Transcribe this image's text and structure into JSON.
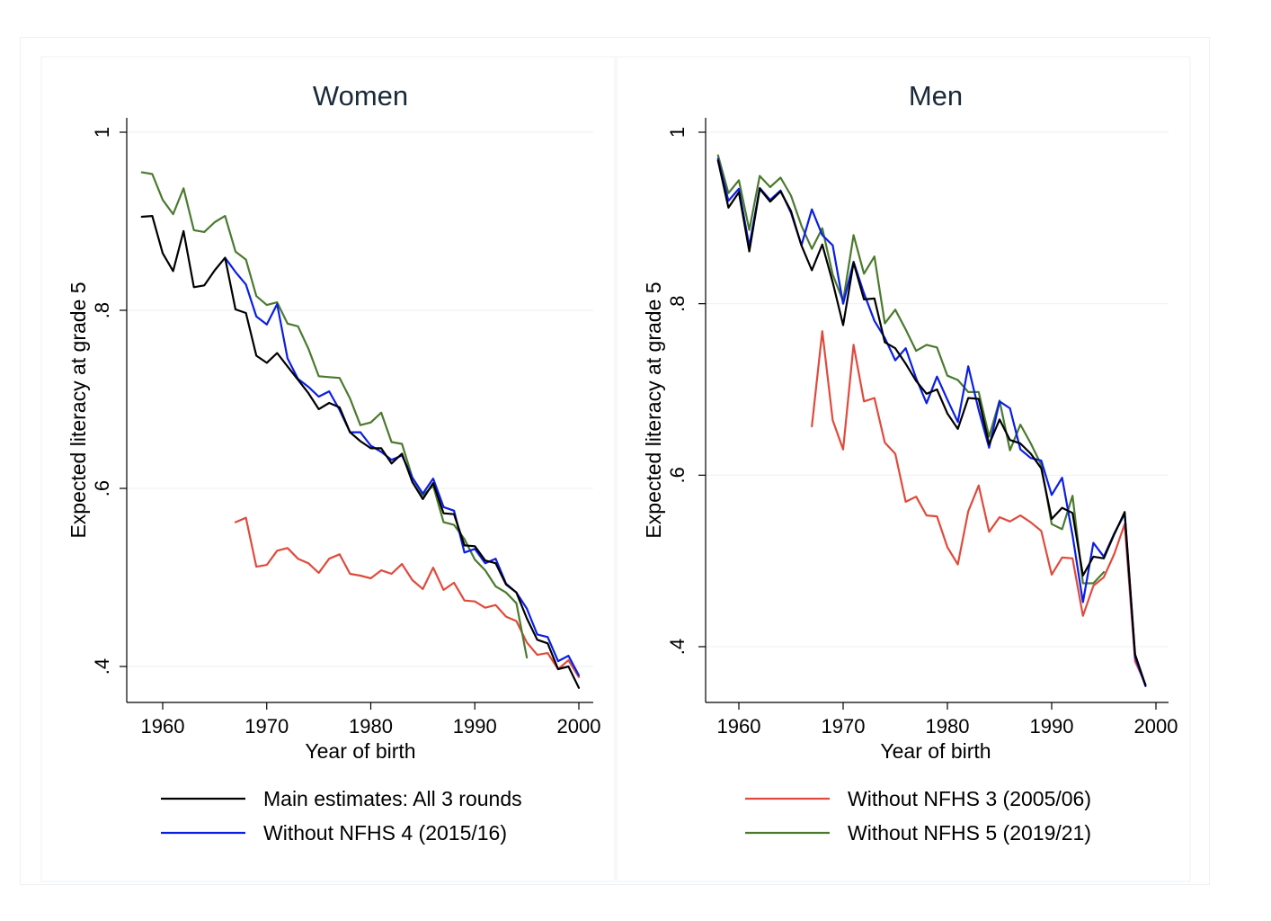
{
  "chart_data": [
    {
      "type": "line",
      "title": "Women",
      "xlabel": "Year of birth",
      "ylabel": "Expected literacy at grade 5",
      "xlim": [
        1956,
        2001.5
      ],
      "ylim": [
        0.37,
        1.0
      ],
      "xticks": [
        1960,
        1970,
        1980,
        1990,
        2000
      ],
      "yticks": [
        {
          "value": 0.4,
          "label": ".4"
        },
        {
          "value": 0.6,
          "label": ".6"
        },
        {
          "value": 0.8,
          "label": ".8"
        },
        {
          "value": 1.0,
          "label": "1"
        }
      ],
      "grid": true,
      "series": [
        {
          "name": "Main estimates: All 3 rounds",
          "color": "#000000",
          "x": [
            1958,
            1959,
            1960,
            1961,
            1962,
            1963,
            1964,
            1965,
            1966,
            1967,
            1968,
            1969,
            1970,
            1971,
            1972,
            1973,
            1974,
            1975,
            1976,
            1977,
            1978,
            1979,
            1980,
            1981,
            1982,
            1983,
            1984,
            1985,
            1986,
            1987,
            1988,
            1989,
            1990,
            1991,
            1992,
            1993,
            1994,
            1995,
            1996,
            1997,
            1998,
            1999,
            2000
          ],
          "y": [
            0.905,
            0.906,
            0.864,
            0.844,
            0.889,
            0.826,
            0.828,
            0.845,
            0.859,
            0.801,
            0.797,
            0.749,
            0.741,
            0.752,
            0.737,
            0.722,
            0.707,
            0.689,
            0.696,
            0.691,
            0.663,
            0.653,
            0.645,
            0.645,
            0.628,
            0.639,
            0.607,
            0.588,
            0.606,
            0.572,
            0.571,
            0.536,
            0.535,
            0.519,
            0.516,
            0.492,
            0.483,
            0.454,
            0.43,
            0.426,
            0.397,
            0.4,
            0.376
          ]
        },
        {
          "name": "Without NFHS 4 (2015/16)",
          "color": "#0a1ee6",
          "x": [
            1966,
            1967,
            1968,
            1969,
            1970,
            1971,
            1972,
            1973,
            1974,
            1975,
            1976,
            1977,
            1978,
            1979,
            1980,
            1981,
            1982,
            1983,
            1984,
            1985,
            1986,
            1987,
            1988,
            1989,
            1990,
            1991,
            1992,
            1993,
            1994,
            1995,
            1996,
            1997,
            1998,
            1999,
            2000
          ],
          "y": [
            0.859,
            0.843,
            0.829,
            0.793,
            0.784,
            0.807,
            0.746,
            0.723,
            0.714,
            0.703,
            0.709,
            0.688,
            0.663,
            0.663,
            0.648,
            0.641,
            0.632,
            0.637,
            0.612,
            0.594,
            0.611,
            0.579,
            0.575,
            0.528,
            0.532,
            0.516,
            0.521,
            0.493,
            0.483,
            0.465,
            0.436,
            0.433,
            0.406,
            0.412,
            0.39
          ]
        },
        {
          "name": "Without NFHS 3 (2005/06)",
          "color": "#e04a3c",
          "x": [
            1967,
            1968,
            1969,
            1970,
            1971,
            1972,
            1973,
            1974,
            1975,
            1976,
            1977,
            1978,
            1979,
            1980,
            1981,
            1982,
            1983,
            1984,
            1985,
            1986,
            1987,
            1988,
            1989,
            1990,
            1991,
            1992,
            1993,
            1994,
            1995,
            1996,
            1997,
            1998,
            1999,
            2000
          ],
          "y": [
            0.562,
            0.567,
            0.512,
            0.514,
            0.53,
            0.533,
            0.521,
            0.516,
            0.505,
            0.521,
            0.526,
            0.504,
            0.502,
            0.499,
            0.508,
            0.504,
            0.515,
            0.497,
            0.487,
            0.511,
            0.486,
            0.494,
            0.474,
            0.473,
            0.466,
            0.469,
            0.456,
            0.451,
            0.427,
            0.413,
            0.415,
            0.397,
            0.407,
            0.388
          ]
        },
        {
          "name": "Without NFHS 5 (2019/21)",
          "color": "#4a7a2e",
          "x": [
            1958,
            1959,
            1960,
            1961,
            1962,
            1963,
            1964,
            1965,
            1966,
            1967,
            1968,
            1969,
            1970,
            1971,
            1972,
            1973,
            1974,
            1975,
            1976,
            1977,
            1978,
            1979,
            1980,
            1981,
            1982,
            1983,
            1984,
            1985,
            1986,
            1987,
            1988,
            1989,
            1990,
            1991,
            1992,
            1993,
            1994,
            1995
          ],
          "y": [
            0.955,
            0.953,
            0.924,
            0.908,
            0.937,
            0.89,
            0.888,
            0.899,
            0.906,
            0.866,
            0.857,
            0.816,
            0.806,
            0.809,
            0.785,
            0.782,
            0.757,
            0.726,
            0.725,
            0.724,
            0.701,
            0.671,
            0.674,
            0.685,
            0.652,
            0.65,
            0.612,
            0.592,
            0.603,
            0.562,
            0.559,
            0.543,
            0.52,
            0.508,
            0.49,
            0.483,
            0.471,
            0.41
          ]
        }
      ]
    },
    {
      "type": "line",
      "title": "Men",
      "xlabel": "Year of birth",
      "ylabel": "Expected literacy at grade 5",
      "xlim": [
        1956,
        2001.5
      ],
      "ylim": [
        0.34,
        1.0
      ],
      "xticks": [
        1960,
        1970,
        1980,
        1990,
        2000
      ],
      "yticks": [
        {
          "value": 0.4,
          "label": ".4"
        },
        {
          "value": 0.6,
          "label": ".6"
        },
        {
          "value": 0.8,
          "label": ".8"
        },
        {
          "value": 1.0,
          "label": "1"
        }
      ],
      "grid": true,
      "series": [
        {
          "name": "Main estimates: All 3 rounds",
          "color": "#000000",
          "x": [
            1958,
            1959,
            1960,
            1961,
            1962,
            1963,
            1964,
            1965,
            1966,
            1967,
            1968,
            1969,
            1970,
            1971,
            1972,
            1973,
            1974,
            1975,
            1976,
            1977,
            1978,
            1979,
            1980,
            1981,
            1982,
            1983,
            1984,
            1985,
            1986,
            1987,
            1988,
            1989,
            1990,
            1991,
            1992,
            1993,
            1994,
            1995,
            1996,
            1997,
            1998,
            1999
          ],
          "y": [
            0.967,
            0.912,
            0.93,
            0.861,
            0.934,
            0.919,
            0.931,
            0.908,
            0.868,
            0.839,
            0.869,
            0.825,
            0.775,
            0.848,
            0.805,
            0.806,
            0.755,
            0.748,
            0.73,
            0.71,
            0.695,
            0.7,
            0.672,
            0.654,
            0.69,
            0.689,
            0.636,
            0.665,
            0.641,
            0.637,
            0.625,
            0.608,
            0.549,
            0.562,
            0.556,
            0.483,
            0.505,
            0.503,
            0.531,
            0.557,
            0.391,
            0.355
          ]
        },
        {
          "name": "Without NFHS 4 (2015/16)",
          "color": "#0a1ee6",
          "x": [
            1958,
            1959,
            1960,
            1961,
            1962,
            1963,
            1964,
            1965,
            1966,
            1967,
            1968,
            1969,
            1970,
            1971,
            1972,
            1973,
            1974,
            1975,
            1976,
            1977,
            1978,
            1979,
            1980,
            1981,
            1982,
            1983,
            1984,
            1985,
            1986,
            1987,
            1988,
            1989,
            1990,
            1991,
            1992,
            1993,
            1994,
            1995,
            1996,
            1997,
            1998,
            1999
          ],
          "y": [
            0.969,
            0.92,
            0.934,
            0.867,
            0.935,
            0.921,
            0.932,
            0.906,
            0.868,
            0.91,
            0.88,
            0.868,
            0.8,
            0.849,
            0.812,
            0.78,
            0.76,
            0.734,
            0.748,
            0.713,
            0.684,
            0.715,
            0.688,
            0.662,
            0.727,
            0.676,
            0.632,
            0.686,
            0.678,
            0.63,
            0.62,
            0.617,
            0.577,
            0.597,
            0.53,
            0.452,
            0.521,
            0.505,
            0.532,
            0.555,
            0.388,
            0.354
          ]
        },
        {
          "name": "Without NFHS 3 (2005/06)",
          "color": "#e04a3c",
          "x": [
            1967,
            1968,
            1969,
            1970,
            1971,
            1972,
            1973,
            1974,
            1975,
            1976,
            1977,
            1978,
            1979,
            1980,
            1981,
            1982,
            1983,
            1984,
            1985,
            1986,
            1987,
            1988,
            1989,
            1990,
            1991,
            1992,
            1993,
            1994,
            1995,
            1996,
            1997,
            1998,
            1999
          ],
          "y": [
            0.657,
            0.768,
            0.664,
            0.63,
            0.752,
            0.686,
            0.69,
            0.638,
            0.625,
            0.569,
            0.575,
            0.553,
            0.552,
            0.516,
            0.496,
            0.558,
            0.588,
            0.534,
            0.551,
            0.546,
            0.553,
            0.545,
            0.535,
            0.484,
            0.504,
            0.503,
            0.436,
            0.471,
            0.481,
            0.508,
            0.543,
            0.383,
            0.356
          ]
        },
        {
          "name": "Without NFHS 5 (2019/21)",
          "color": "#4a7a2e",
          "x": [
            1958,
            1959,
            1960,
            1961,
            1962,
            1963,
            1964,
            1965,
            1966,
            1967,
            1968,
            1969,
            1970,
            1971,
            1972,
            1973,
            1974,
            1975,
            1976,
            1977,
            1978,
            1979,
            1980,
            1981,
            1982,
            1983,
            1984,
            1985,
            1986,
            1987,
            1988,
            1989,
            1990,
            1991,
            1992,
            1993,
            1994,
            1995
          ],
          "y": [
            0.973,
            0.929,
            0.944,
            0.886,
            0.949,
            0.936,
            0.947,
            0.926,
            0.891,
            0.864,
            0.888,
            0.834,
            0.803,
            0.88,
            0.835,
            0.855,
            0.777,
            0.793,
            0.77,
            0.745,
            0.752,
            0.749,
            0.716,
            0.711,
            0.697,
            0.697,
            0.645,
            0.687,
            0.629,
            0.659,
            0.637,
            0.612,
            0.543,
            0.537,
            0.576,
            0.474,
            0.474,
            0.487
          ]
        }
      ]
    }
  ],
  "legend": {
    "position": "bottom",
    "entries": [
      {
        "label": "Main estimates: All 3 rounds",
        "color": "#000000"
      },
      {
        "label": "Without NFHS 4 (2015/16)",
        "color": "#0a1ee6"
      },
      {
        "label": "Without NFHS 3 (2005/06)",
        "color": "#e04a3c"
      },
      {
        "label": "Without NFHS 5 (2019/21)",
        "color": "#4a7a2e"
      }
    ]
  }
}
